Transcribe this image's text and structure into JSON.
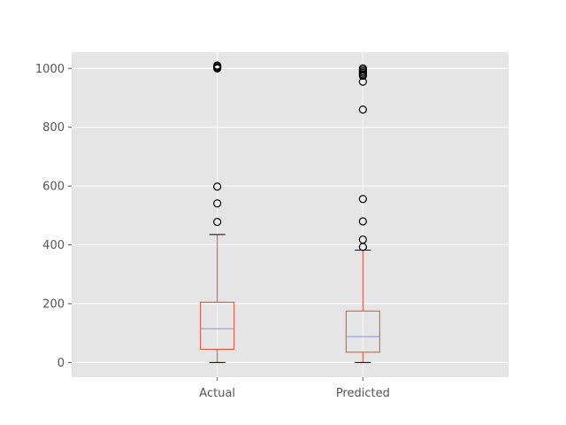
{
  "chart_data": {
    "type": "box",
    "categories": [
      "Actual",
      "Predicted"
    ],
    "ylim": [
      -50,
      1055
    ],
    "yticks": [
      0,
      200,
      400,
      600,
      800,
      1000
    ],
    "grid": true,
    "boxes": [
      {
        "name": "Actual",
        "whisker_low": 0,
        "q1": 45,
        "median": 115,
        "q3": 205,
        "whisker_high": 435,
        "outliers": [
          478,
          541,
          598,
          1000,
          1003,
          1007,
          1010
        ]
      },
      {
        "name": "Predicted",
        "whisker_low": 0,
        "q1": 35,
        "median": 88,
        "q3": 175,
        "whisker_high": 382,
        "outliers": [
          393,
          418,
          480,
          556,
          860,
          955,
          975,
          980,
          985,
          990,
          995,
          1000
        ]
      }
    ],
    "colors": {
      "background": "#e5e5e5",
      "grid": "#ffffff",
      "box": "#e24a33",
      "median": "#8e8ee0",
      "whisker_cap": "#000000",
      "flier": "#000000"
    }
  }
}
